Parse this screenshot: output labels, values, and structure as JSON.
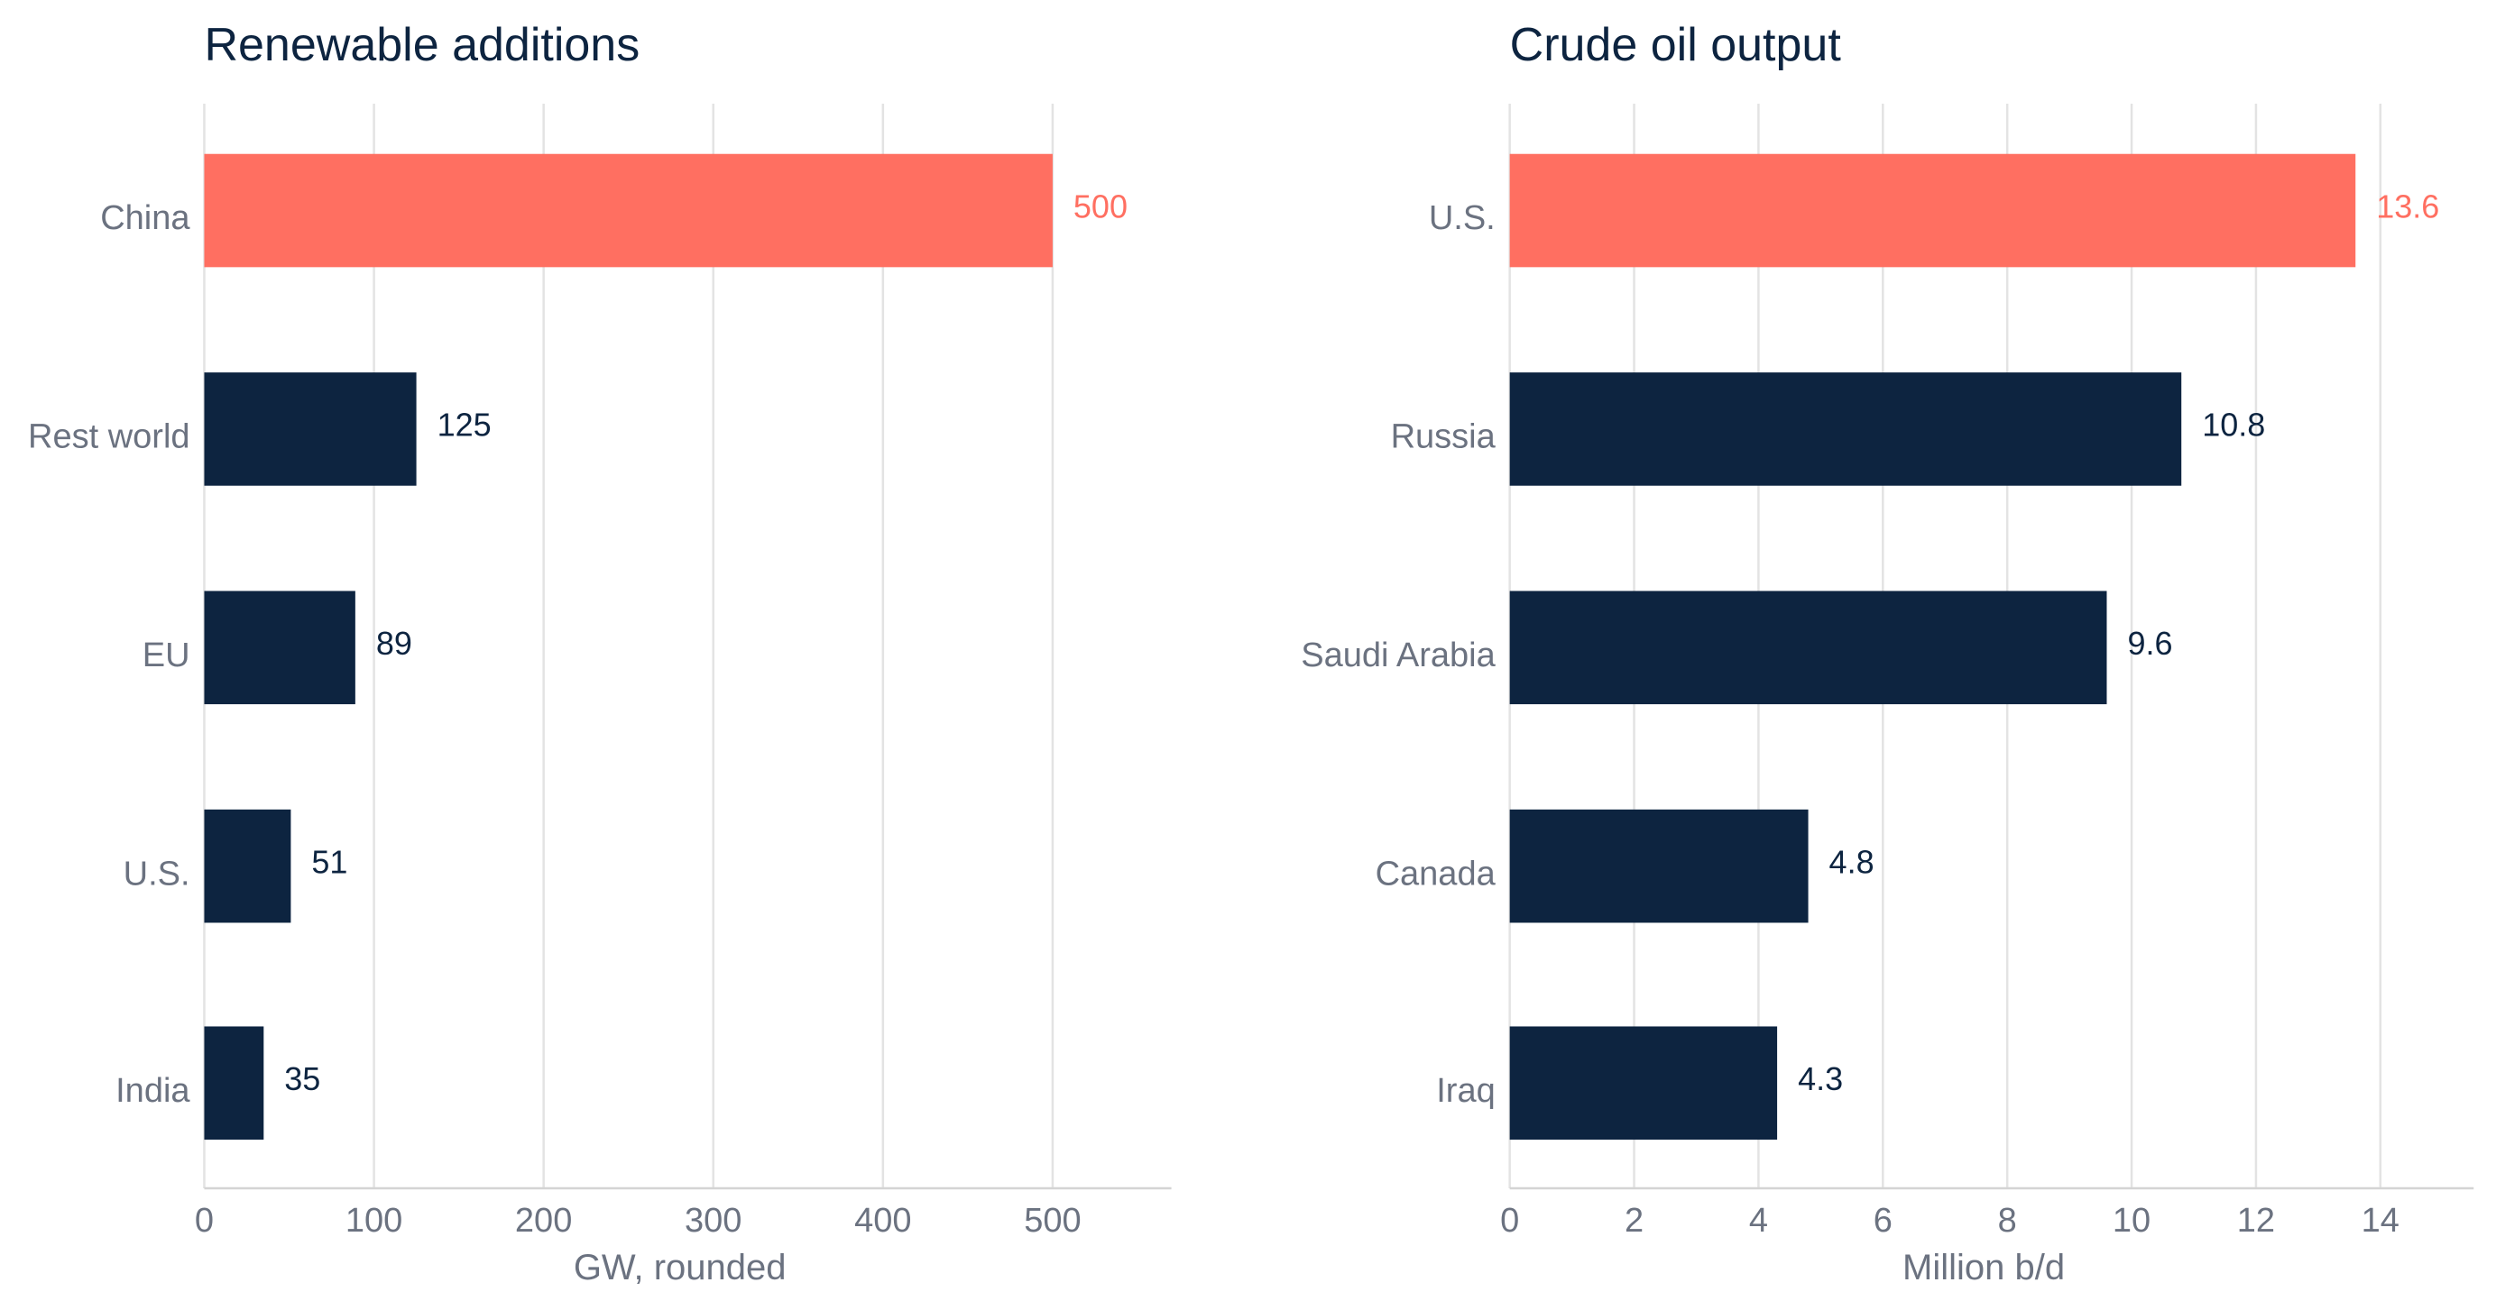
{
  "colors": {
    "highlight": "#ff6f61",
    "bar": "#0d2440",
    "title": "#0d2440",
    "muted_text": "#6b7280",
    "grid": "#e3e3e3",
    "axis": "#d4d4d4"
  },
  "chart_data": [
    {
      "type": "bar",
      "orientation": "horizontal",
      "title": "Renewable additions",
      "xlabel": "GW, rounded",
      "ylabel": "",
      "categories": [
        "China",
        "Rest world",
        "EU",
        "U.S.",
        "India"
      ],
      "values": [
        500,
        125,
        89,
        51,
        35
      ],
      "value_labels": [
        "500",
        "125",
        "89",
        "51",
        "35"
      ],
      "highlight_index": 0,
      "xlim": [
        0,
        570
      ],
      "xticks": [
        0,
        100,
        200,
        300,
        400,
        500
      ],
      "xtick_labels": [
        "0",
        "100",
        "200",
        "300",
        "400",
        "500"
      ],
      "grid": "vertical",
      "legend": "none"
    },
    {
      "type": "bar",
      "orientation": "horizontal",
      "title": "Crude oil output",
      "xlabel": "Million b/d",
      "ylabel": "",
      "categories": [
        "U.S.",
        "Russia",
        "Saudi Arabia",
        "Canada",
        "Iraq"
      ],
      "values": [
        13.6,
        10.8,
        9.6,
        4.8,
        4.3
      ],
      "value_labels": [
        "13.6",
        "10.8",
        "9.6",
        "4.8",
        "4.3"
      ],
      "highlight_index": 0,
      "xlim": [
        0,
        15.5
      ],
      "xticks": [
        0,
        2,
        4,
        6,
        8,
        10,
        12,
        14
      ],
      "xtick_labels": [
        "0",
        "2",
        "4",
        "6",
        "8",
        "10",
        "12",
        "14"
      ],
      "grid": "vertical",
      "legend": "none"
    }
  ]
}
